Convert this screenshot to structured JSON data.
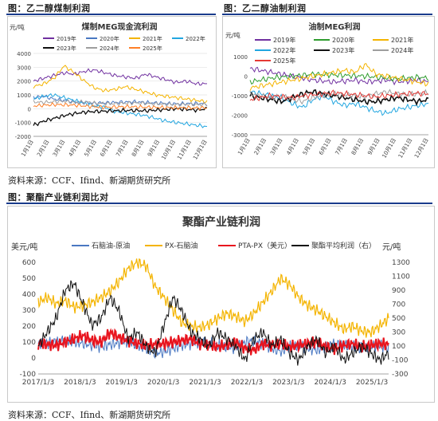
{
  "headers": {
    "fig1": "图：乙二醇煤制利润",
    "fig2": "图：乙二醇油制利润",
    "fig3": "图：聚酯产业链利润比对"
  },
  "sources": {
    "src1": "资料来源：CCF、Ifind、新湖期货研究所",
    "src2": "资料来源：CCF、Ifind、新湖期货研究所"
  },
  "colors": {
    "rule": "#1a3c8c"
  },
  "chart_data": [
    {
      "type": "line",
      "title": "煤制MEG现金流利润",
      "ylabel": "元/吨",
      "ylim": [
        -2000,
        4000
      ],
      "yticks": [
        "4000",
        "3000",
        "2000",
        "1000",
        "0",
        "-1000",
        "-2000"
      ],
      "xticks": [
        "1月1日",
        "2月1日",
        "3月1日",
        "4月1日",
        "5月1日",
        "6月1日",
        "7月1日",
        "8月1日",
        "9月1日",
        "10月1日",
        "11月1日",
        "12月1日"
      ],
      "legend_position": "top",
      "series": [
        {
          "name": "2019年",
          "color": "#7030a0",
          "values": [
            2000,
            2200,
            2400,
            2600,
            2500,
            2700,
            2800,
            2600,
            2400,
            2300,
            2200,
            2500,
            2300,
            2100,
            1900,
            2000,
            1800,
            1800
          ]
        },
        {
          "name": "2020年",
          "color": "#4a78c2",
          "values": [
            800,
            900,
            700,
            600,
            500,
            450,
            400,
            420,
            460,
            480,
            500,
            450,
            420,
            380,
            350,
            370,
            380,
            350
          ]
        },
        {
          "name": "2021年",
          "color": "#f4b400",
          "values": [
            1600,
            1800,
            2200,
            3100,
            2600,
            2000,
            1500,
            1300,
            1400,
            1600,
            1400,
            1200,
            1000,
            900,
            800,
            700,
            600,
            500
          ]
        },
        {
          "name": "2022年",
          "color": "#22a6e0",
          "values": [
            700,
            900,
            1000,
            800,
            600,
            400,
            200,
            100,
            -200,
            -300,
            -400,
            -500,
            -700,
            -900,
            -1000,
            -1100,
            -1200,
            -1300
          ]
        },
        {
          "name": "2023年",
          "color": "#111111",
          "values": [
            -1200,
            -900,
            -700,
            -500,
            -350,
            -250,
            -200,
            -180,
            -150,
            -120,
            -130,
            -150,
            -100,
            -50,
            0,
            -50,
            -100,
            0
          ]
        },
        {
          "name": "2024年",
          "color": "#9e9e9e",
          "values": [
            500,
            450,
            500,
            550,
            450,
            500,
            400,
            380,
            350,
            400,
            420,
            380,
            350,
            330,
            300,
            320,
            300,
            300
          ]
        },
        {
          "name": "2025年",
          "color": "#ff7f27",
          "values": [
            200,
            250,
            300,
            280,
            260,
            200,
            150,
            100,
            120,
            150,
            130,
            110,
            100,
            80,
            60,
            70,
            50,
            60
          ]
        }
      ]
    },
    {
      "type": "line",
      "title": "油制MEG利润",
      "ylabel": "元/吨",
      "ylim": [
        -3000,
        1000
      ],
      "yticks": [
        "1000",
        "0",
        "-1000",
        "-2000",
        "-3000"
      ],
      "xticks": [
        "1月1日",
        "2月1日",
        "3月1日",
        "4月1日",
        "5月1日",
        "6月1日",
        "7月1日",
        "8月1日",
        "9月1日",
        "10月1日",
        "11月1日",
        "12月1日"
      ],
      "legend_position": "top",
      "series": [
        {
          "name": "2019年",
          "color": "#7030a0",
          "values": [
            400,
            300,
            200,
            100,
            0,
            -100,
            -200,
            -250,
            -300,
            -250,
            -200,
            -300,
            -250,
            -200,
            -300,
            -250,
            -200,
            -300
          ]
        },
        {
          "name": "2020年",
          "color": "#2e9c2e",
          "values": [
            -300,
            -200,
            -100,
            -50,
            0,
            50,
            100,
            80,
            60,
            40,
            20,
            0,
            -50,
            -100,
            -150,
            -100,
            -50,
            -100
          ]
        },
        {
          "name": "2021年",
          "color": "#f4b400",
          "values": [
            -600,
            -500,
            -400,
            -300,
            -200,
            -100,
            0,
            100,
            200,
            300,
            200,
            600,
            100,
            0,
            -100,
            -200,
            -300,
            -400
          ]
        },
        {
          "name": "2022年",
          "color": "#22a6e0",
          "values": [
            -800,
            -900,
            -1000,
            -1100,
            -1400,
            -1600,
            -1200,
            -1000,
            -1300,
            -1500,
            -1400,
            -1600,
            -1800,
            -1900,
            -1700,
            -1600,
            -1500,
            -1400
          ]
        },
        {
          "name": "2023年",
          "color": "#111111",
          "values": [
            -1000,
            -1100,
            -1200,
            -1300,
            -1100,
            -900,
            -800,
            -900,
            -1000,
            -1100,
            -1200,
            -1300,
            -1300,
            -1200,
            -1100,
            -1200,
            -1300,
            -1200
          ]
        },
        {
          "name": "2024年",
          "color": "#9e9e9e",
          "values": [
            -900,
            -1000,
            -1100,
            -1000,
            -1200,
            -1300,
            -1100,
            -1000,
            -900,
            -950,
            -1000,
            -1050,
            -900,
            -800,
            -900,
            -950,
            -900,
            -850
          ]
        },
        {
          "name": "2025年",
          "color": "#e53935",
          "values": [
            -1200,
            -1100,
            -1000,
            -1050,
            -1100,
            -1000,
            -950,
            -900,
            -850,
            -900,
            -950,
            -1000,
            -1050,
            -1000,
            -950,
            -900,
            -880,
            -900
          ]
        }
      ]
    },
    {
      "type": "line",
      "title": "聚酯产业链利润",
      "ylabel": "美元/吨",
      "ylabel_right": "元/吨",
      "ylim": [
        -100,
        600
      ],
      "ylim_right": [
        -300,
        1300
      ],
      "yticks": [
        "600",
        "500",
        "400",
        "300",
        "200",
        "100",
        "0",
        "-100"
      ],
      "yticks_right": [
        "1300",
        "1100",
        "900",
        "700",
        "500",
        "300",
        "100",
        "-100",
        "-300"
      ],
      "xticks": [
        "2017/1/3",
        "2018/1/3",
        "2019/1/3",
        "2020/1/3",
        "2021/1/3",
        "2022/1/3",
        "2023/1/3",
        "2024/1/3",
        "2025/1/3"
      ],
      "x_range": [
        "2017/1/3",
        "2025/6/1"
      ],
      "legend_position": "top",
      "series": [
        {
          "name": "石脑油-原油",
          "color": "#4a78c2",
          "axis": "left",
          "values": [
            90,
            95,
            100,
            110,
            100,
            90,
            80,
            70,
            85,
            95,
            105,
            80,
            60,
            30,
            40,
            60,
            80,
            90,
            100,
            95,
            80,
            70,
            60,
            100,
            110,
            90,
            60,
            40,
            70,
            80,
            60,
            50,
            70,
            90,
            80,
            70,
            60,
            70,
            80,
            60
          ]
        },
        {
          "name": "PX-石脑油",
          "color": "#f4b400",
          "axis": "left",
          "values": [
            350,
            380,
            340,
            360,
            320,
            330,
            350,
            380,
            420,
            480,
            560,
            600,
            580,
            450,
            380,
            300,
            220,
            200,
            190,
            210,
            250,
            280,
            260,
            230,
            280,
            350,
            420,
            500,
            460,
            380,
            330,
            300,
            260,
            220,
            180,
            200,
            170,
            160,
            200,
            250
          ]
        },
        {
          "name": "PTA-PX（美元）",
          "color": "#e8141e",
          "axis": "left",
          "values": [
            90,
            85,
            80,
            100,
            120,
            140,
            110,
            100,
            160,
            130,
            110,
            90,
            80,
            85,
            90,
            100,
            110,
            120,
            90,
            80,
            70,
            80,
            100,
            60,
            50,
            90,
            80,
            90,
            70,
            80,
            90,
            100,
            70,
            60,
            80,
            90,
            70,
            80,
            90,
            85
          ]
        },
        {
          "name": "聚酯平均利润（右）",
          "color": "#111111",
          "axis": "right",
          "values": [
            100,
            300,
            500,
            900,
            1000,
            700,
            400,
            500,
            800,
            600,
            200,
            300,
            100,
            0,
            400,
            800,
            600,
            300,
            200,
            100,
            300,
            200,
            100,
            -100,
            200,
            300,
            100,
            200,
            0,
            -100,
            100,
            200,
            0,
            100,
            -100,
            0,
            100,
            0,
            -100,
            0
          ]
        }
      ]
    }
  ]
}
